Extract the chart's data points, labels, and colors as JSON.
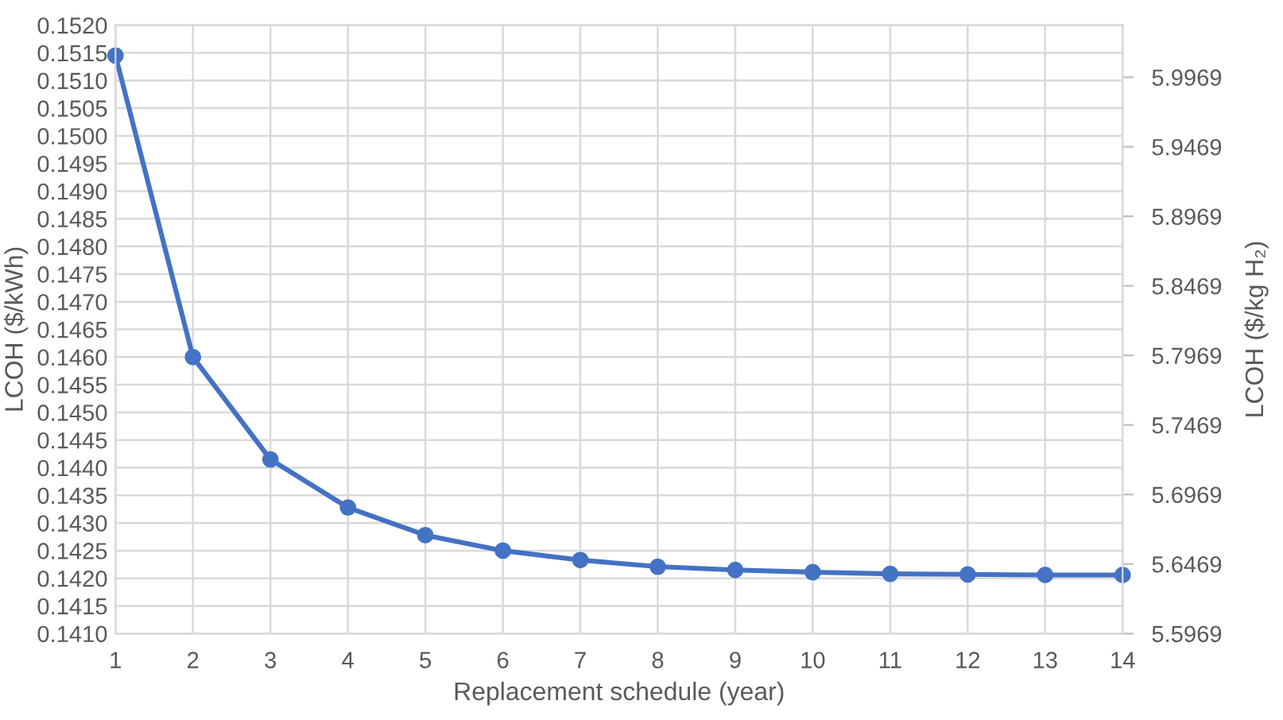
{
  "chart_data": {
    "type": "line",
    "xlabel": "Replacement schedule (year)",
    "ylabel": "LCOH ($/kWh)",
    "y2label": "LCOH ($/kg H₂)",
    "x": [
      1,
      2,
      3,
      4,
      5,
      6,
      7,
      8,
      9,
      10,
      11,
      12,
      13,
      14
    ],
    "series": [
      {
        "color": "#4472c4",
        "values": [
          0.15145,
          0.146,
          0.14415,
          0.14328,
          0.14278,
          0.1425,
          0.14233,
          0.14221,
          0.14215,
          0.14211,
          0.14208,
          0.14207,
          0.14206,
          0.14206
        ]
      }
    ],
    "xlim": [
      1,
      14
    ],
    "xticks": [
      1,
      2,
      3,
      4,
      5,
      6,
      7,
      8,
      9,
      10,
      11,
      12,
      13,
      14
    ],
    "ylim": [
      0.141,
      0.152
    ],
    "yticks": [
      {
        "value": 0.141,
        "label": "0.1410"
      },
      {
        "value": 0.1415,
        "label": "0.1415"
      },
      {
        "value": 0.142,
        "label": "0.1420"
      },
      {
        "value": 0.1425,
        "label": "0.1425"
      },
      {
        "value": 0.143,
        "label": "0.1430"
      },
      {
        "value": 0.1435,
        "label": "0.1435"
      },
      {
        "value": 0.144,
        "label": "0.1440"
      },
      {
        "value": 0.1445,
        "label": "0.1445"
      },
      {
        "value": 0.145,
        "label": "0.1450"
      },
      {
        "value": 0.1455,
        "label": "0.1455"
      },
      {
        "value": 0.146,
        "label": "0.1460"
      },
      {
        "value": 0.1465,
        "label": "0.1465"
      },
      {
        "value": 0.147,
        "label": "0.1470"
      },
      {
        "value": 0.1475,
        "label": "0.1475"
      },
      {
        "value": 0.148,
        "label": "0.1480"
      },
      {
        "value": 0.1485,
        "label": "0.1485"
      },
      {
        "value": 0.149,
        "label": "0.1490"
      },
      {
        "value": 0.1495,
        "label": "0.1495"
      },
      {
        "value": 0.15,
        "label": "0.1500"
      },
      {
        "value": 0.1505,
        "label": "0.1505"
      },
      {
        "value": 0.151,
        "label": "0.1510"
      },
      {
        "value": 0.1515,
        "label": "0.1515"
      },
      {
        "value": 0.152,
        "label": "0.1520"
      }
    ],
    "y2lim": [
      5.5969,
      6.0343
    ],
    "y2ticks": [
      5.5969,
      5.6469,
      5.6969,
      5.7469,
      5.7969,
      5.8469,
      5.8969,
      5.9469,
      5.9969
    ],
    "grid": true,
    "marker": "circle",
    "line_style": "solid"
  }
}
